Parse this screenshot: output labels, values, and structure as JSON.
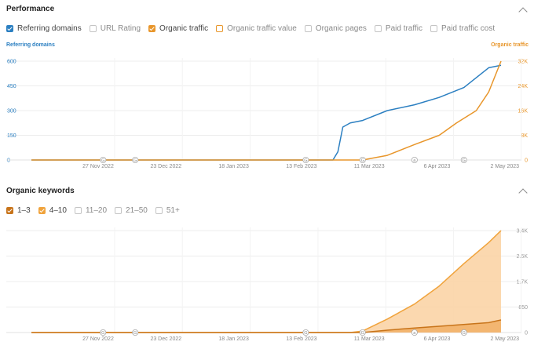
{
  "performance": {
    "title": "Performance",
    "legend": [
      {
        "label": "Referring domains",
        "checked": true,
        "color": "#2b7fc1"
      },
      {
        "label": "URL Rating",
        "checked": false,
        "color": "#c4c4c4"
      },
      {
        "label": "Organic traffic",
        "checked": true,
        "color": "#e8962b"
      },
      {
        "label": "Organic traffic value",
        "checked": false,
        "color": "#e8962b"
      },
      {
        "label": "Organic pages",
        "checked": false,
        "color": "#c4c4c4"
      },
      {
        "label": "Paid traffic",
        "checked": false,
        "color": "#c4c4c4"
      },
      {
        "label": "Paid traffic cost",
        "checked": false,
        "color": "#c4c4c4"
      }
    ],
    "left_axis_title": "Referring domains",
    "right_axis_title": "Organic traffic"
  },
  "keywords": {
    "title": "Organic keywords",
    "legend": [
      {
        "label": "1–3",
        "checked": true,
        "color": "#c8741a"
      },
      {
        "label": "4–10",
        "checked": true,
        "color": "#f0a33c"
      },
      {
        "label": "11–20",
        "checked": false,
        "color": "#c4c4c4"
      },
      {
        "label": "21–50",
        "checked": false,
        "color": "#c4c4c4"
      },
      {
        "label": "51+",
        "checked": false,
        "color": "#c4c4c4"
      }
    ]
  },
  "chart_data": [
    {
      "type": "line",
      "x_tick_labels": [
        "27 Nov 2022",
        "23 Dec 2022",
        "18 Jan 2023",
        "13 Feb 2023",
        "11 Mar 2023",
        "6 Apr 2023",
        "2 May 2023"
      ],
      "x_domain": [
        "2022-11-01",
        "2023-05-10"
      ],
      "y_left": {
        "ticks": [
          "0",
          "150",
          "300",
          "450",
          "600"
        ],
        "lim": [
          0,
          600
        ],
        "color": "#2b7fc1"
      },
      "y_right": {
        "ticks": [
          "0",
          "8K",
          "16K",
          "24K",
          "32K"
        ],
        "lim": [
          0,
          32000
        ],
        "color": "#e8962b"
      },
      "annotation_markers": [
        {
          "x": "2022-11-30",
          "label": "G"
        },
        {
          "x": "2022-12-13",
          "label": "G"
        },
        {
          "x": "2023-02-20",
          "label": "G"
        },
        {
          "x": "2023-03-15",
          "label": "G"
        },
        {
          "x": "2023-04-05",
          "label": "a"
        },
        {
          "x": "2023-04-25",
          "label": "G"
        }
      ],
      "series": [
        {
          "name": "Referring domains",
          "axis": "left",
          "color": "#2b7fc1",
          "points": [
            [
              "2022-11-01",
              0
            ],
            [
              "2023-03-03",
              0
            ],
            [
              "2023-03-05",
              50
            ],
            [
              "2023-03-07",
              200
            ],
            [
              "2023-03-10",
              225
            ],
            [
              "2023-03-15",
              240
            ],
            [
              "2023-03-25",
              300
            ],
            [
              "2023-04-05",
              335
            ],
            [
              "2023-04-15",
              380
            ],
            [
              "2023-04-25",
              440
            ],
            [
              "2023-05-05",
              560
            ],
            [
              "2023-05-10",
              575
            ]
          ]
        },
        {
          "name": "Organic traffic",
          "axis": "right",
          "color": "#e8962b",
          "points": [
            [
              "2022-11-01",
              0
            ],
            [
              "2023-03-15",
              0
            ],
            [
              "2023-03-25",
              1500
            ],
            [
              "2023-04-05",
              5000
            ],
            [
              "2023-04-15",
              8000
            ],
            [
              "2023-04-22",
              12000
            ],
            [
              "2023-04-30",
              16000
            ],
            [
              "2023-05-05",
              22000
            ],
            [
              "2023-05-10",
              32000
            ]
          ]
        }
      ]
    },
    {
      "type": "area",
      "x_tick_labels": [
        "27 Nov 2022",
        "23 Dec 2022",
        "18 Jan 2023",
        "13 Feb 2023",
        "11 Mar 2023",
        "6 Apr 2023",
        "2 May 2023"
      ],
      "x_domain": [
        "2022-11-01",
        "2023-05-10"
      ],
      "y_right": {
        "ticks": [
          "0",
          "850",
          "1.7K",
          "2.6K",
          "3.4K"
        ],
        "lim": [
          0,
          3400
        ]
      },
      "annotation_markers": [
        {
          "x": "2022-11-30",
          "label": "G"
        },
        {
          "x": "2022-12-13",
          "label": "G"
        },
        {
          "x": "2023-02-20",
          "label": "G"
        },
        {
          "x": "2023-03-15",
          "label": "G"
        },
        {
          "x": "2023-04-05",
          "label": "a"
        },
        {
          "x": "2023-04-25",
          "label": "G"
        }
      ],
      "series": [
        {
          "name": "4–10",
          "color": "#f0a33c",
          "fill": "#fbd4a6",
          "points": [
            [
              "2022-11-01",
              0
            ],
            [
              "2023-03-10",
              0
            ],
            [
              "2023-03-15",
              50
            ],
            [
              "2023-03-25",
              450
            ],
            [
              "2023-04-05",
              950
            ],
            [
              "2023-04-15",
              1550
            ],
            [
              "2023-04-25",
              2300
            ],
            [
              "2023-05-05",
              3000
            ],
            [
              "2023-05-10",
              3400
            ]
          ]
        },
        {
          "name": "1–3",
          "color": "#c8741a",
          "fill": "#f2b36a",
          "points": [
            [
              "2022-11-01",
              0
            ],
            [
              "2023-03-15",
              0
            ],
            [
              "2023-03-25",
              80
            ],
            [
              "2023-04-05",
              150
            ],
            [
              "2023-04-20",
              240
            ],
            [
              "2023-05-05",
              330
            ],
            [
              "2023-05-10",
              420
            ]
          ]
        }
      ]
    }
  ]
}
